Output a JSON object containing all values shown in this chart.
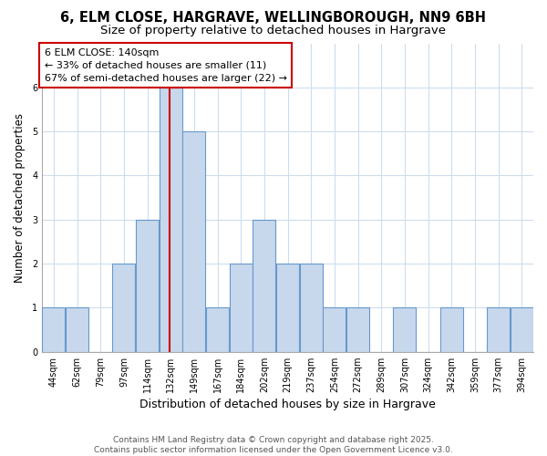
{
  "title1": "6, ELM CLOSE, HARGRAVE, WELLINGBOROUGH, NN9 6BH",
  "title2": "Size of property relative to detached houses in Hargrave",
  "xlabel": "Distribution of detached houses by size in Hargrave",
  "ylabel": "Number of detached properties",
  "bins": [
    "44sqm",
    "62sqm",
    "79sqm",
    "97sqm",
    "114sqm",
    "132sqm",
    "149sqm",
    "167sqm",
    "184sqm",
    "202sqm",
    "219sqm",
    "237sqm",
    "254sqm",
    "272sqm",
    "289sqm",
    "307sqm",
    "324sqm",
    "342sqm",
    "359sqm",
    "377sqm",
    "394sqm"
  ],
  "n_bins": 21,
  "heights": [
    1,
    1,
    0,
    2,
    3,
    6,
    5,
    1,
    2,
    3,
    2,
    2,
    1,
    1,
    0,
    1,
    0,
    1,
    0,
    1,
    1
  ],
  "bar_color": "#c8d8ec",
  "bar_edge_color": "#6699cc",
  "vline_index": 5.47,
  "vline_color": "#cc0000",
  "annotation_text": "6 ELM CLOSE: 140sqm\n← 33% of detached houses are smaller (11)\n67% of semi-detached houses are larger (22) →",
  "annotation_box_color": "#ffffff",
  "annotation_box_edge": "#cc0000",
  "ylim": [
    0,
    7
  ],
  "yticks": [
    0,
    1,
    2,
    3,
    4,
    5,
    6
  ],
  "footer_text": "Contains HM Land Registry data © Crown copyright and database right 2025.\nContains public sector information licensed under the Open Government Licence v3.0.",
  "bg_color": "#ffffff",
  "plot_bg_color": "#ffffff",
  "title_fontsize": 10.5,
  "subtitle_fontsize": 9.5,
  "tick_fontsize": 7,
  "xlabel_fontsize": 9,
  "ylabel_fontsize": 8.5,
  "annotation_fontsize": 8,
  "footer_fontsize": 6.5
}
